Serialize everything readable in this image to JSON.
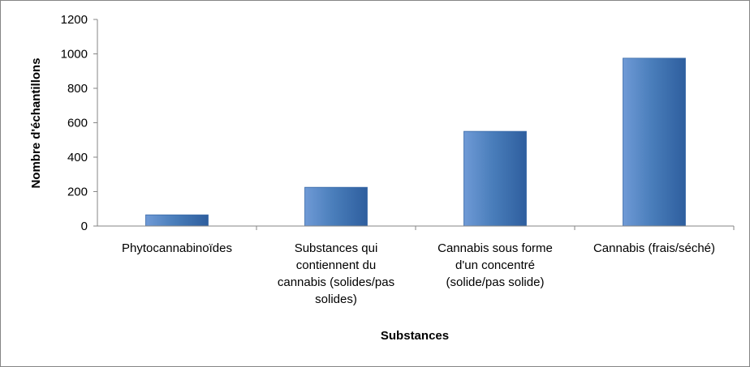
{
  "chart_data": {
    "type": "bar",
    "categories": [
      [
        "Phytocannabinoïdes"
      ],
      [
        "Substances qui",
        "contiennent du",
        "cannabis (solides/pas",
        "solides)"
      ],
      [
        "Cannabis sous forme",
        "d'un concentré",
        "(solide/pas solide)"
      ],
      [
        "Cannabis (frais/séché)"
      ]
    ],
    "values": [
      65,
      225,
      550,
      975
    ],
    "xlabel": "Substances",
    "ylabel": "Nombre d'échantillons",
    "ylim": [
      0,
      1200
    ],
    "yticks": [
      0,
      200,
      400,
      600,
      800,
      1000,
      1200
    ],
    "grid": false,
    "legend": "none",
    "bar_color": "#4a7ebb",
    "bar_color_light": "#6f9ad6",
    "bar_color_dark": "#2e5e9e"
  }
}
